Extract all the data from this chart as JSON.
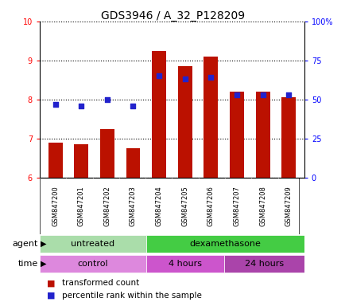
{
  "title": "GDS3946 / A_32_P128209",
  "samples": [
    "GSM847200",
    "GSM847201",
    "GSM847202",
    "GSM847203",
    "GSM847204",
    "GSM847205",
    "GSM847206",
    "GSM847207",
    "GSM847208",
    "GSM847209"
  ],
  "transformed_count": [
    6.9,
    6.85,
    7.25,
    6.75,
    9.25,
    8.85,
    9.1,
    8.2,
    8.2,
    8.05
  ],
  "percentile_rank": [
    47,
    46,
    50,
    46,
    65,
    63,
    64,
    53,
    53,
    53
  ],
  "ylim_left": [
    6,
    10
  ],
  "ylim_right": [
    0,
    100
  ],
  "yticks_left": [
    6,
    7,
    8,
    9,
    10
  ],
  "yticks_right": [
    0,
    25,
    50,
    75,
    100
  ],
  "bar_color": "#bb1100",
  "dot_color": "#2222cc",
  "bar_bottom": 6,
  "agent_untreated_color": "#aaddaa",
  "agent_dexa_color": "#44cc44",
  "time_control_color": "#dd88dd",
  "time_4h_color": "#cc55cc",
  "time_24h_color": "#aa44aa",
  "legend_items": [
    {
      "label": "transformed count",
      "color": "#bb1100"
    },
    {
      "label": "percentile rank within the sample",
      "color": "#2222cc"
    }
  ],
  "title_fontsize": 10,
  "tick_fontsize": 7,
  "sample_fontsize": 6,
  "row_label_fontsize": 8,
  "group_label_fontsize": 8,
  "legend_fontsize": 7.5
}
